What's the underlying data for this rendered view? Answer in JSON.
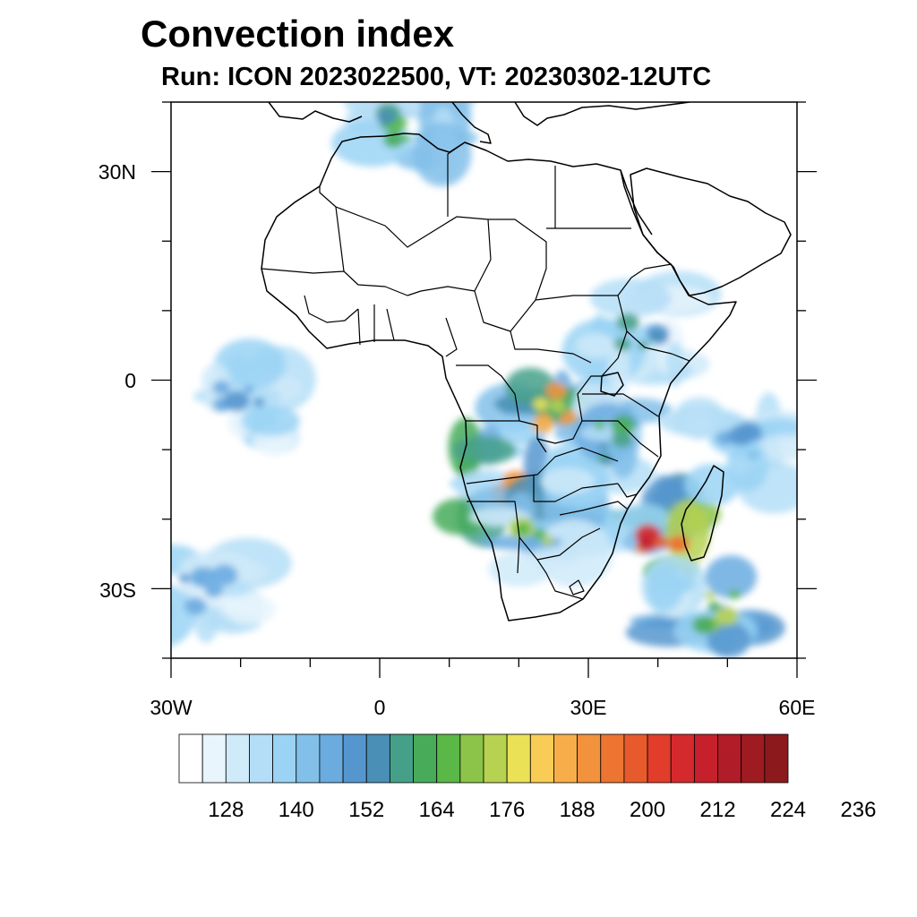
{
  "header": {
    "title": "Convection index",
    "subtitle": "Run: ICON 2023022500,  VT: 20230302-12UTC"
  },
  "map": {
    "lon_range": [
      -30,
      60
    ],
    "lat_range": [
      -40,
      40
    ],
    "x_ticks": [
      {
        "value": -30,
        "label": "30W"
      },
      {
        "value": 0,
        "label": "0"
      },
      {
        "value": 30,
        "label": "30E"
      },
      {
        "value": 60,
        "label": "60E"
      }
    ],
    "y_ticks": [
      {
        "value": 30,
        "label": "30N"
      },
      {
        "value": 0,
        "label": "0"
      },
      {
        "value": -30,
        "label": "30S"
      }
    ],
    "minor_tick_step": 10
  },
  "colorbar": {
    "colors": [
      "#ffffff",
      "#e8f5fd",
      "#cfeaf9",
      "#b4def7",
      "#9ad3f4",
      "#82c0ea",
      "#6aabe0",
      "#5596cf",
      "#4a8fb5",
      "#46a089",
      "#47ab5a",
      "#59b847",
      "#8cc44a",
      "#b7d251",
      "#ebe157",
      "#f9cc55",
      "#f7ae4a",
      "#f2923d",
      "#ec7532",
      "#e65a2b",
      "#e13d2a",
      "#d52a2d",
      "#c5202b",
      "#b01c27",
      "#9e1b22",
      "#8c1a1d"
    ],
    "labels": [
      "128",
      "140",
      "152",
      "164",
      "176",
      "188",
      "200",
      "212",
      "224",
      "236"
    ]
  },
  "field_areas": [
    {
      "name": "central-africa",
      "lon": 25,
      "lat": -4,
      "peak": 0.72
    },
    {
      "name": "angola",
      "lon": 17,
      "lat": -15,
      "peak": 0.8
    },
    {
      "name": "mozambique-channel",
      "lon": 40,
      "lat": -23,
      "peak": 0.95
    },
    {
      "name": "botswana-zimbabwe",
      "lon": 23,
      "lat": -22,
      "peak": 0.6
    },
    {
      "name": "east-africa",
      "lon": 34,
      "lat": -9,
      "peak": 0.45
    },
    {
      "name": "atlantic-itcz",
      "lon": -20,
      "lat": -3,
      "peak": 0.3
    },
    {
      "name": "south-indian-ocean-band",
      "lon": 48,
      "lat": -33,
      "peak": 0.55
    },
    {
      "name": "south-atlantic-band",
      "lon": -25,
      "lat": -30,
      "peak": 0.3
    },
    {
      "name": "mediterranean",
      "lon": 4,
      "lat": 37,
      "peak": 0.45
    },
    {
      "name": "ethiopian-highlands",
      "lon": 38,
      "lat": 7,
      "peak": 0.35
    },
    {
      "name": "madagascar-east",
      "lon": 52,
      "lat": -10,
      "peak": 0.3
    }
  ]
}
